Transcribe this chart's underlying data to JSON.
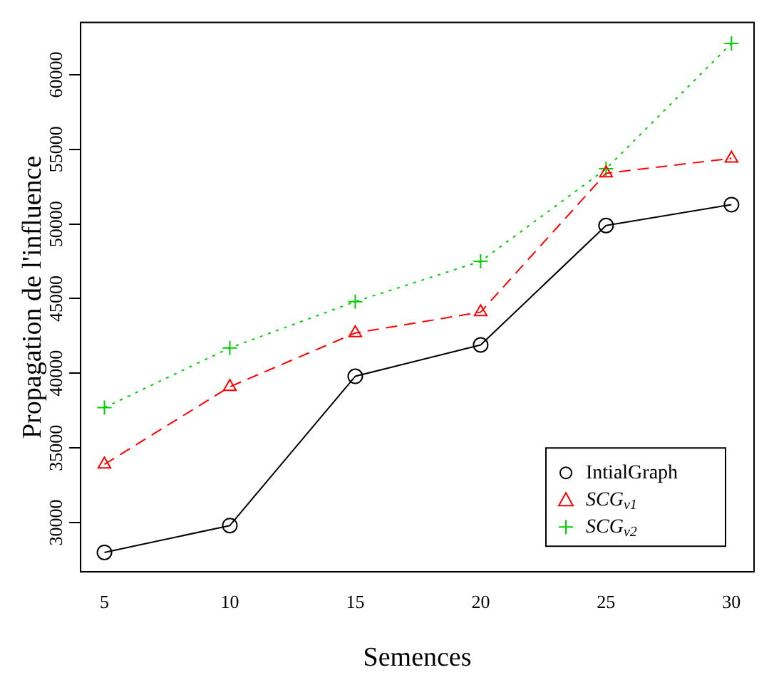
{
  "chart_data": {
    "type": "line",
    "xlabel": "Semences",
    "ylabel": "Propagation de l'influence",
    "x": [
      5,
      10,
      15,
      20,
      25,
      30
    ],
    "series": [
      {
        "name": "IntialGraph",
        "color": "#000000",
        "marker": "circle",
        "line_style": "solid",
        "values": [
          28000,
          29800,
          39800,
          41900,
          49900,
          51300
        ]
      },
      {
        "name": "SCG$_{v1}$",
        "color": "#ff0000",
        "marker": "triangle",
        "line_style": "dashed",
        "values": [
          33900,
          39100,
          42700,
          44100,
          53400,
          54400
        ]
      },
      {
        "name": "SCG$_{v2}$",
        "color": "#00cd00",
        "marker": "cross",
        "line_style": "dotted",
        "values": [
          37700,
          41700,
          44800,
          47500,
          53700,
          62100
        ]
      }
    ],
    "xlim": [
      4.05,
      30.9
    ],
    "xticks": [
      5,
      10,
      15,
      20,
      25,
      30
    ],
    "ylim": [
      26700,
      63500
    ],
    "yticks": [
      30000,
      35000,
      40000,
      45000,
      50000,
      55000,
      60000
    ],
    "grid": false,
    "legend": "bottom right"
  }
}
